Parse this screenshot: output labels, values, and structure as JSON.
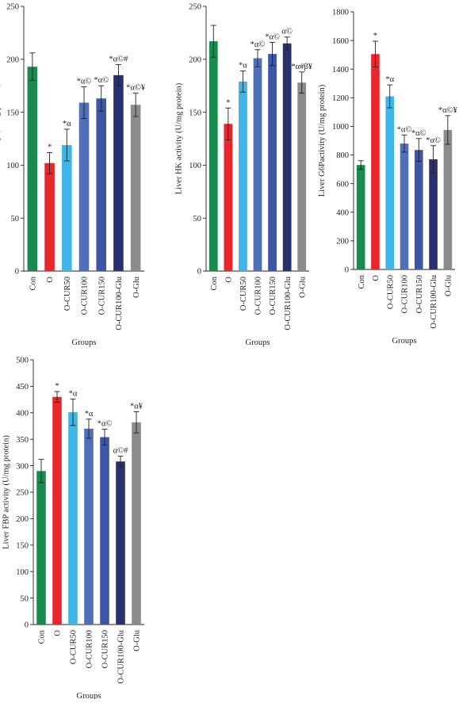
{
  "colors": [
    "#1a8a4f",
    "#e8262c",
    "#3fb6e8",
    "#4f6fb8",
    "#3d56a6",
    "#29306f",
    "#8c8c8c"
  ],
  "chart_data": [
    {
      "type": "bar",
      "xlabel": "Groups",
      "ylabel": "Liver PK activity (U/mg protein)",
      "ylim": [
        0,
        250
      ],
      "yticks": [
        "0",
        "50",
        "100",
        "150",
        "200",
        "250"
      ],
      "categories": [
        "Con",
        "O",
        "O-CUR50",
        "O-CUR100",
        "O-CUR150",
        "O-CUR100-Glu",
        "O-Glu"
      ],
      "values": [
        193,
        102,
        119,
        159,
        163,
        185,
        157
      ],
      "errors": [
        13,
        10,
        15,
        15,
        12,
        10,
        11
      ],
      "annotations": [
        "",
        "*",
        "*α",
        "*α©",
        "*α©",
        "*α©#",
        "*α©¥"
      ]
    },
    {
      "type": "bar",
      "xlabel": "Groups",
      "ylabel": "Liver HK activity (U/mg protein)",
      "ylim": [
        0,
        250
      ],
      "yticks": [
        "0",
        "50",
        "100",
        "150",
        "200",
        "250"
      ],
      "categories": [
        "Con",
        "O",
        "O-CUR50",
        "O-CUR100",
        "O-CUR150",
        "O-CUR100-Glu",
        "O-Glu"
      ],
      "values": [
        217,
        139,
        179,
        201,
        205,
        215,
        178
      ],
      "errors": [
        15,
        15,
        10,
        8,
        11,
        6,
        10
      ],
      "annotations": [
        "",
        "*",
        "*α",
        "*α©",
        "*α©",
        "α©",
        "*α#β¥"
      ]
    },
    {
      "type": "bar",
      "xlabel": "Groups",
      "ylabel": "Liver G6Pactivity (U/mg protein)",
      "ylim": [
        0,
        1800
      ],
      "yticks": [
        "0",
        "200",
        "400",
        "600",
        "800",
        "1000",
        "1200",
        "1400",
        "1600",
        "1800"
      ],
      "categories": [
        "Con",
        "O",
        "O-CUR50",
        "O-CUR100",
        "O-CUR150",
        "O-CUR100-Glu",
        "O-Glu"
      ],
      "values": [
        730,
        1505,
        1210,
        880,
        835,
        770,
        975
      ],
      "errors": [
        30,
        90,
        80,
        60,
        80,
        95,
        100
      ],
      "annotations": [
        "",
        "*",
        "*α",
        "*α©",
        "*α©",
        "*α©",
        "*α©¥"
      ]
    },
    {
      "type": "bar",
      "xlabel": "Groups",
      "ylabel": "Liver FBP activity (U/mg protein)",
      "ylim": [
        0,
        500
      ],
      "yticks": [
        "0",
        "50",
        "100",
        "150",
        "200",
        "250",
        "300",
        "350",
        "400",
        "450",
        "500"
      ],
      "categories": [
        "Con",
        "O",
        "O-CUR50",
        "O-CUR100",
        "O-CUR150",
        "O-CUR100-Glu",
        "O-Glu"
      ],
      "values": [
        290,
        430,
        401,
        370,
        354,
        308,
        382
      ],
      "errors": [
        22,
        10,
        25,
        18,
        15,
        10,
        20
      ],
      "annotations": [
        "",
        "*",
        "*α",
        "*α",
        "*α©",
        "α©#",
        "*α¥"
      ]
    }
  ]
}
